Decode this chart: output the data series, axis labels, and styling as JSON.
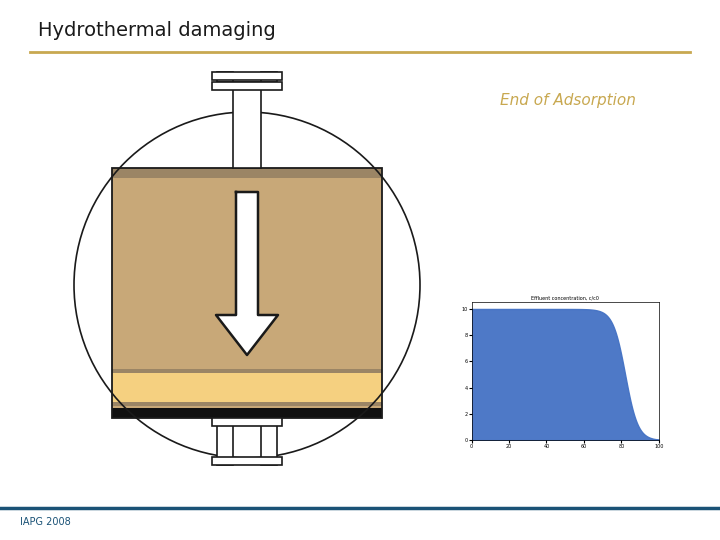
{
  "title": "Hydrothermal damaging",
  "title_color": "#1a1a1a",
  "title_fontsize": 14,
  "separator_color": "#c8a850",
  "footer_text": "IAPG 2008",
  "footer_color": "#1a5276",
  "label_end_adsorption": "End of Adsorption",
  "label_color": "#c8a850",
  "bg_color": "#ffffff",
  "tank_circle_color": "#1a1a1a",
  "tank_rect_fill": "#c8a878",
  "tank_rect_dark_band": "#9b8565",
  "tank_rect_light_band": "#f5d080",
  "tank_black_band": "#101010",
  "arrow_color": "#1a1a1a",
  "pipe_color": "#1a1a1a",
  "inlet_fill": "#ffffff",
  "chart_blue": "#4472c4"
}
